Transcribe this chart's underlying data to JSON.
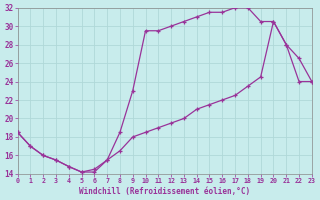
{
  "xlabel": "Windchill (Refroidissement éolien,°C)",
  "xlim": [
    0,
    23
  ],
  "ylim": [
    14,
    32
  ],
  "xticks": [
    0,
    1,
    2,
    3,
    4,
    5,
    6,
    7,
    8,
    9,
    10,
    11,
    12,
    13,
    14,
    15,
    16,
    17,
    18,
    19,
    20,
    21,
    22,
    23
  ],
  "yticks": [
    14,
    16,
    18,
    20,
    22,
    24,
    26,
    28,
    30,
    32
  ],
  "bg_color": "#c8ecec",
  "line_color": "#993399",
  "grid_color": "#b0d8d8",
  "line1_x": [
    0,
    1,
    2,
    3,
    4,
    5,
    6,
    7,
    8,
    9,
    10,
    11,
    12,
    13,
    14,
    15,
    16,
    17,
    18,
    19,
    20,
    21,
    22,
    23
  ],
  "line1_y": [
    18.5,
    17.0,
    16.0,
    15.5,
    14.8,
    14.2,
    14.2,
    15.5,
    18.5,
    23.0,
    29.5,
    29.5,
    30.0,
    30.5,
    31.0,
    31.5,
    31.5,
    32.0,
    32.0,
    30.5,
    30.5,
    28.0,
    24.0,
    24.0
  ],
  "line2_x": [
    0,
    1,
    2,
    3,
    4,
    5,
    6,
    7,
    8,
    9,
    10,
    11,
    12,
    13,
    14,
    15,
    16,
    17,
    18,
    19,
    20,
    21,
    22,
    23
  ],
  "line2_y": [
    18.5,
    17.0,
    16.0,
    15.5,
    14.8,
    14.2,
    14.5,
    15.5,
    16.5,
    18.0,
    18.5,
    19.0,
    19.5,
    20.0,
    21.0,
    21.5,
    22.0,
    22.5,
    23.5,
    24.5,
    30.5,
    28.0,
    26.5,
    24.0
  ]
}
